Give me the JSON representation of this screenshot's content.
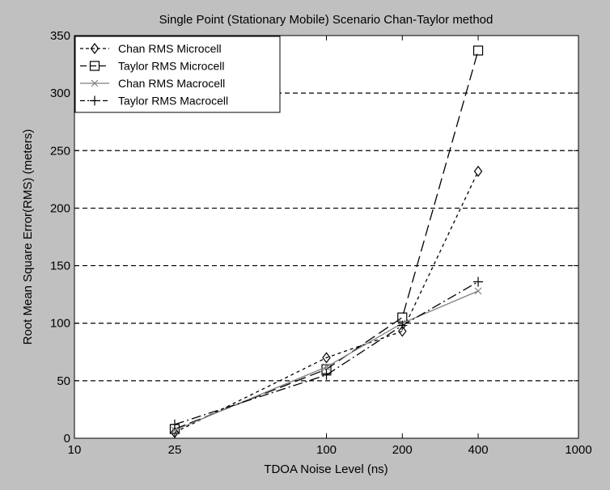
{
  "chart_data": {
    "type": "line",
    "title": "Single Point (Stationary Mobile) Scenario Chan-Taylor method",
    "xlabel": "TDOA Noise Level (ns)",
    "ylabel": "Root Mean Square Error(RMS) (meters)",
    "xscale": "log",
    "xlim": [
      10,
      1000
    ],
    "ylim": [
      0,
      350
    ],
    "xticks": [
      10,
      25,
      100,
      200,
      400,
      1000
    ],
    "xtick_labels": [
      "10",
      "25",
      "100",
      "200",
      "400",
      "1000"
    ],
    "yticks": [
      0,
      50,
      100,
      150,
      200,
      250,
      300,
      350
    ],
    "ytick_labels": [
      "0",
      "50",
      "100",
      "150",
      "200",
      "250",
      "300",
      "350"
    ],
    "grid": "horizontal dashed",
    "legend_position": "top-left",
    "x": [
      25,
      100,
      200,
      400
    ],
    "series": [
      {
        "name": "Chan RMS Microcell",
        "values": [
          5,
          70,
          93,
          232
        ],
        "marker": "diamond",
        "line": "dashed",
        "color": "#000000"
      },
      {
        "name": "Taylor RMS Microcell",
        "values": [
          8,
          60,
          105,
          337
        ],
        "marker": "square",
        "line": "longdash",
        "color": "#000000"
      },
      {
        "name": "Chan RMS Macrocell",
        "values": [
          7,
          62,
          100,
          128
        ],
        "marker": "x",
        "line": "solid",
        "color": "#808080"
      },
      {
        "name": "Taylor RMS Macrocell",
        "values": [
          12,
          55,
          98,
          136
        ],
        "marker": "plus",
        "line": "dashdot",
        "color": "#000000"
      }
    ]
  }
}
